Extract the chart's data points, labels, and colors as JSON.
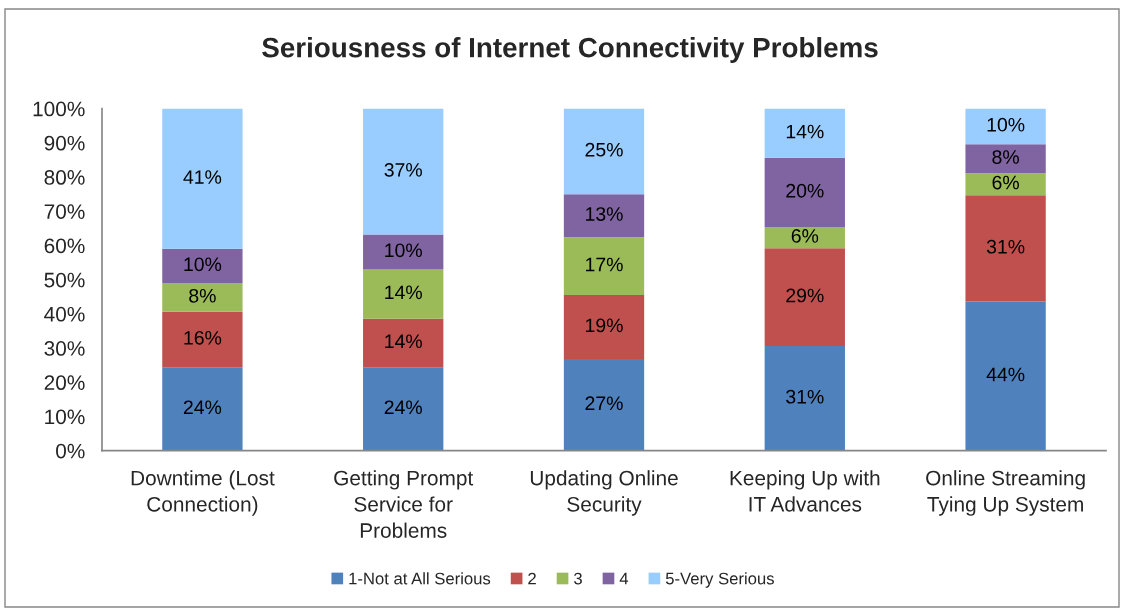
{
  "chart_data": {
    "type": "bar",
    "title": "Seriousness of Internet Connectivity Problems",
    "categories": [
      "Downtime (Lost\nConnection)",
      "Getting Prompt\nService for\nProblems",
      "Updating Online\nSecurity",
      "Keeping Up with\nIT Advances",
      "Online Streaming\nTying Up System"
    ],
    "stacked": true,
    "series": [
      {
        "name": "1-Not at All Serious",
        "color": "#4f81bd",
        "values": [
          24.4,
          24.4,
          26.8,
          30.6,
          43.6
        ],
        "value_labels": [
          "24%",
          "24%",
          "27%",
          "31%",
          "44%"
        ]
      },
      {
        "name": "2",
        "color": "#c0504d",
        "values": [
          16.2,
          14.2,
          18.7,
          28.6,
          31.1
        ],
        "value_labels": [
          "16%",
          "14%",
          "19%",
          "29%",
          "31%"
        ]
      },
      {
        "name": "3",
        "color": "#9bbb59",
        "values": [
          8.4,
          14.4,
          16.9,
          6.2,
          6.4
        ],
        "value_labels": [
          "8%",
          "14%",
          "17%",
          "6%",
          "6%"
        ]
      },
      {
        "name": "4",
        "color": "#8064a2",
        "values": [
          10.0,
          10.2,
          12.6,
          20.2,
          8.5
        ],
        "value_labels": [
          "10%",
          "10%",
          "13%",
          "20%",
          "8%"
        ]
      },
      {
        "name": "5-Very Serious",
        "color": "#99ccff",
        "values": [
          41.0,
          36.8,
          25.0,
          14.4,
          10.4
        ],
        "value_labels": [
          "41%",
          "37%",
          "25%",
          "14%",
          "10%"
        ]
      }
    ],
    "ylim": [
      0,
      100
    ],
    "yticks": [
      {
        "value": 0,
        "label": "0%"
      },
      {
        "value": 10,
        "label": "10%"
      },
      {
        "value": 20,
        "label": "20%"
      },
      {
        "value": 30,
        "label": "30%"
      },
      {
        "value": 40,
        "label": "40%"
      },
      {
        "value": 50,
        "label": "50%"
      },
      {
        "value": 60,
        "label": "60%"
      },
      {
        "value": 70,
        "label": "70%"
      },
      {
        "value": 80,
        "label": "80%"
      },
      {
        "value": 90,
        "label": "90%"
      },
      {
        "value": 100,
        "label": "100%"
      }
    ],
    "legend": "bottom",
    "grid": false
  }
}
